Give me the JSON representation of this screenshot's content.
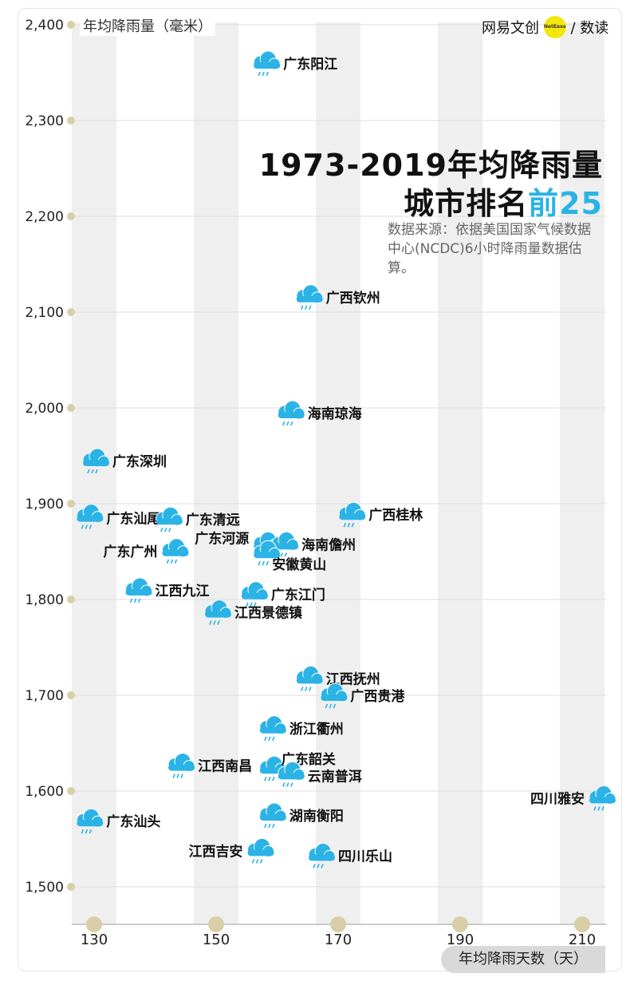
{
  "brand": {
    "left": "网易文创",
    "badge": "NetEase",
    "right": "/ 数读"
  },
  "title_line1": "1973-2019年均降雨量",
  "title_line2_prefix": "城市排名",
  "title_line2_accent": "前25",
  "source_note": "数据来源：依据美国国家气候数据中心(NCDC)6小时降雨量数据估算。",
  "colors": {
    "accent": "#2bb3e6",
    "cloud": "#2bb3e6",
    "band": "#efefef",
    "tick_dot": "#d8cfa8"
  },
  "chart_data": {
    "type": "scatter",
    "xlabel": "年均降雨天数（天）",
    "ylabel": "年均降雨量（毫米）",
    "xlim": [
      127,
      214
    ],
    "ylim": [
      1470,
      2400
    ],
    "xticks": [
      130,
      150,
      170,
      190,
      210
    ],
    "yticks": [
      1500,
      1600,
      1700,
      1800,
      1900,
      2000,
      2100,
      2200,
      2300,
      2400
    ],
    "ytick_labels": [
      "1,500",
      "1,600",
      "1,700",
      "1,800",
      "1,900",
      "2,000",
      "2,100",
      "2,200",
      "2,300",
      "2,400"
    ],
    "grid": true,
    "marker": "rain-cloud",
    "points": [
      {
        "name": "广东阳江",
        "x": 158,
        "y": 2360
      },
      {
        "name": "广西钦州",
        "x": 165,
        "y": 2116
      },
      {
        "name": "海南琼海",
        "x": 162,
        "y": 1995
      },
      {
        "name": "广东深圳",
        "x": 130,
        "y": 1945
      },
      {
        "name": "广东汕尾",
        "x": 129,
        "y": 1887
      },
      {
        "name": "广东清远",
        "x": 142,
        "y": 1884
      },
      {
        "name": "广西桂林",
        "x": 172,
        "y": 1889
      },
      {
        "name": "广东广州",
        "x": 143,
        "y": 1851
      },
      {
        "name": "广东河源",
        "x": 158,
        "y": 1858
      },
      {
        "name": "海南儋州",
        "x": 161,
        "y": 1858
      },
      {
        "name": "安徽黄山",
        "x": 158,
        "y": 1849
      },
      {
        "name": "江西九江",
        "x": 137,
        "y": 1810
      },
      {
        "name": "广东江门",
        "x": 156,
        "y": 1806
      },
      {
        "name": "江西景德镇",
        "x": 150,
        "y": 1787
      },
      {
        "name": "江西抚州",
        "x": 165,
        "y": 1718
      },
      {
        "name": "广西贵港",
        "x": 169,
        "y": 1700
      },
      {
        "name": "浙江衢州",
        "x": 159,
        "y": 1666
      },
      {
        "name": "江西南昌",
        "x": 144,
        "y": 1627
      },
      {
        "name": "广东韶关",
        "x": 159,
        "y": 1624
      },
      {
        "name": "云南普洱",
        "x": 162,
        "y": 1618
      },
      {
        "name": "四川雅安",
        "x": 213,
        "y": 1593
      },
      {
        "name": "广东汕头",
        "x": 129,
        "y": 1569
      },
      {
        "name": "湖南衡阳",
        "x": 159,
        "y": 1575
      },
      {
        "name": "江西吉安",
        "x": 157,
        "y": 1538
      },
      {
        "name": "四川乐山",
        "x": 167,
        "y": 1533
      }
    ]
  }
}
